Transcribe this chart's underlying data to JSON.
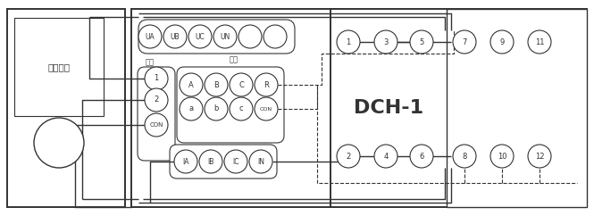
{
  "bg_color": "#ffffff",
  "color": "#333333",
  "fig_width": 6.65,
  "fig_height": 2.42,
  "dpi": 100,
  "left_label": "直流试验",
  "dch_label": "DCH-1",
  "v_labels": [
    "UA",
    "UB",
    "UC",
    "UN",
    "",
    ""
  ],
  "ko_labels": [
    "1",
    "2",
    "CON"
  ],
  "ki_top_labels": [
    "A",
    "B",
    "C",
    "R"
  ],
  "ki_bot_labels": [
    "a",
    "b",
    "c",
    "CON"
  ],
  "cur_labels": [
    "IA",
    "IB",
    "IC",
    "IN"
  ],
  "dch_top_labels": [
    "1",
    "3",
    "5",
    "7",
    "9",
    "11"
  ],
  "dch_bot_labels": [
    "2",
    "4",
    "6",
    "8",
    "10",
    "12"
  ]
}
